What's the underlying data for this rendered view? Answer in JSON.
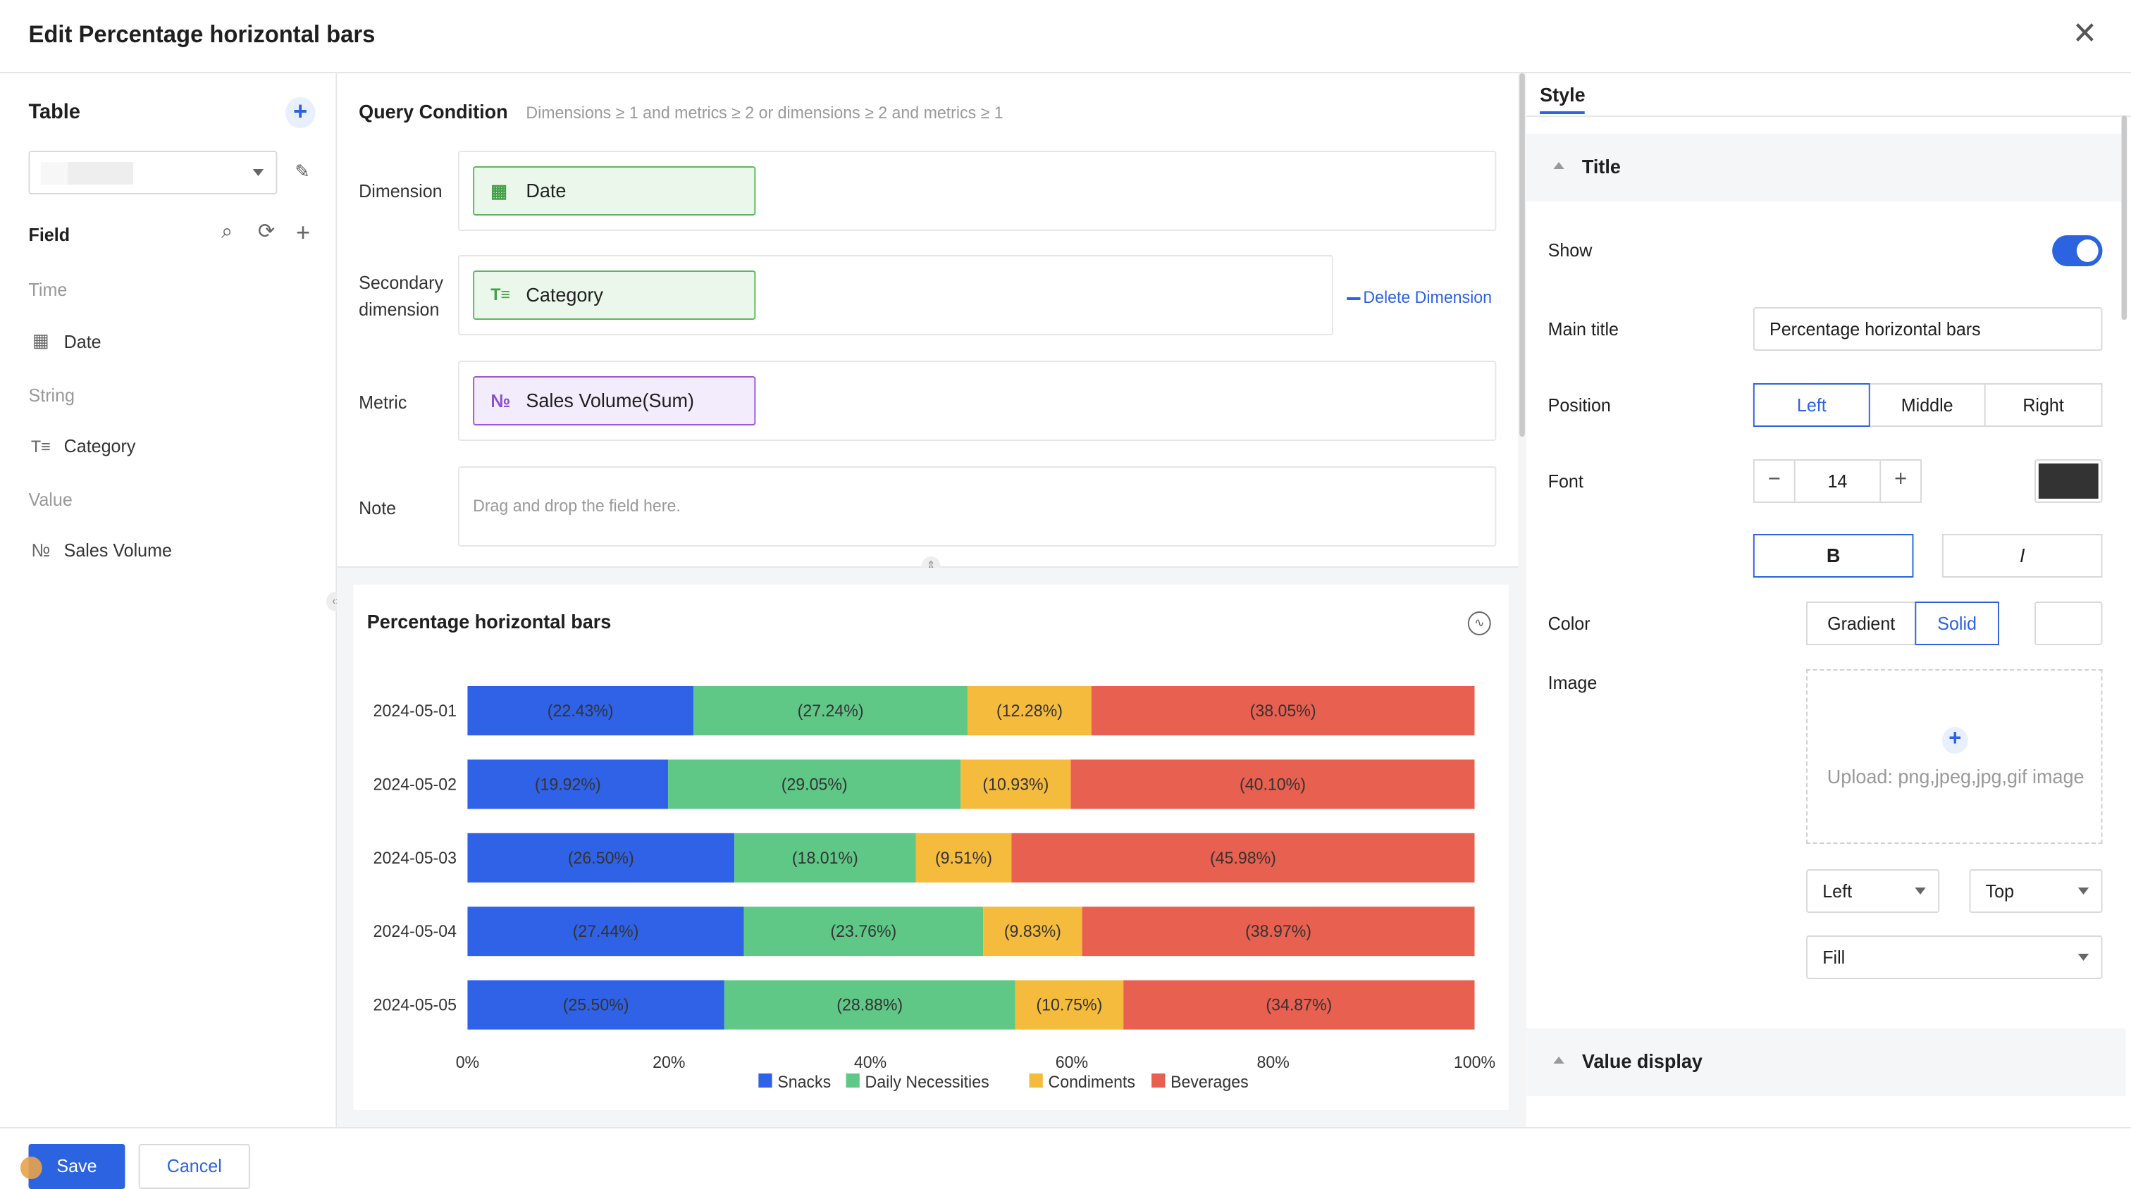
{
  "dialog": {
    "title": "Edit Percentage horizontal bars"
  },
  "left": {
    "title": "Table",
    "field_title": "Field",
    "groups": [
      {
        "label": "Time",
        "items": [
          {
            "label": "Date",
            "icon": "calendar-icon"
          }
        ]
      },
      {
        "label": "String",
        "items": [
          {
            "label": "Category",
            "icon": "text-type-icon"
          }
        ]
      },
      {
        "label": "Value",
        "items": [
          {
            "label": "Sales Volume",
            "icon": "number-type-icon"
          }
        ]
      }
    ]
  },
  "query": {
    "title": "Query Condition",
    "hint": "Dimensions ≥ 1 and metrics ≥ 2 or dimensions ≥ 2 and metrics ≥ 1",
    "dimension_label": "Dimension",
    "dimension_chip": "Date",
    "secondary_label_1": "Secondary",
    "secondary_label_2": "dimension",
    "secondary_chip": "Category",
    "delete_dimension": "Delete Dimension",
    "metric_label": "Metric",
    "metric_chip": "Sales Volume(Sum)",
    "note_label": "Note",
    "note_placeholder": "Drag and drop the field here.",
    "chip_icons": {
      "date": "calendar-icon",
      "category": "text-type-icon",
      "metric": "number-type-icon"
    }
  },
  "chart_data": {
    "type": "bar",
    "orientation": "horizontal",
    "stacked": "percent",
    "title": "Percentage horizontal bars",
    "categories": [
      "2024-05-01",
      "2024-05-02",
      "2024-05-03",
      "2024-05-04",
      "2024-05-05"
    ],
    "series": [
      {
        "name": "Snacks",
        "color": "#2f62e6",
        "values": [
          22.43,
          19.92,
          26.5,
          27.44,
          25.5
        ]
      },
      {
        "name": "Daily Necessities",
        "color": "#5fc887",
        "values": [
          27.24,
          29.05,
          18.01,
          23.76,
          28.88
        ]
      },
      {
        "name": "Condiments",
        "color": "#f5bb3c",
        "values": [
          12.28,
          10.93,
          9.51,
          9.83,
          10.75
        ]
      },
      {
        "name": "Beverages",
        "color": "#e8604f",
        "values": [
          38.05,
          40.1,
          45.98,
          38.97,
          34.87
        ]
      }
    ],
    "xlim": [
      0,
      100
    ],
    "xticks": [
      "0%",
      "20%",
      "40%",
      "60%",
      "80%",
      "100%"
    ],
    "legend": "bottom",
    "data_labels": true,
    "grid": false
  },
  "style": {
    "tab": "Style",
    "title_section": "Title",
    "show_label": "Show",
    "show_on": true,
    "main_title_label": "Main title",
    "main_title_value": "Percentage horizontal bars",
    "position_label": "Position",
    "positions": [
      "Left",
      "Middle",
      "Right"
    ],
    "position_selected": "Left",
    "font_label": "Font",
    "font_minus": "−",
    "font_plus": "+",
    "font_size": "14",
    "font_color": "#333333",
    "bold_label": "B",
    "italic_label": "I",
    "color_label": "Color",
    "color_modes": [
      "Gradient",
      "Solid"
    ],
    "color_mode_selected": "Solid",
    "image_label": "Image",
    "upload_plus": "+",
    "upload_text": "Upload: png,jpeg,jpg,gif image",
    "image_h_align": "Left",
    "image_v_align": "Top",
    "image_fit": "Fill",
    "value_display_section": "Value display"
  },
  "footer": {
    "save": "Save",
    "cancel": "Cancel"
  },
  "glyphs": {
    "close": "✕",
    "add": "+",
    "search": "⌕",
    "refresh": "⟳",
    "edit": "✎",
    "chart_opt": "∿",
    "collapse": "‹›",
    "resize": "⇕",
    "date_glyph": "▦",
    "text_glyph": "T≡",
    "num_glyph": "№"
  }
}
